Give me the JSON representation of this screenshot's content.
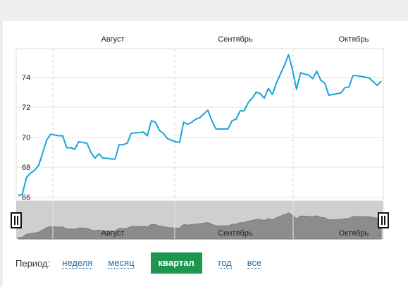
{
  "chart_data": {
    "type": "line",
    "title": "",
    "xlabel": "",
    "ylabel": "",
    "x_tick_labels": [
      "Август",
      "Сентябрь",
      "Октябрь"
    ],
    "y_ticks": [
      66,
      68,
      70,
      72,
      74
    ],
    "ylim": [
      65.8,
      75.9
    ],
    "grid": true,
    "series": [
      {
        "color": "#1aa4d8",
        "values": [
          66.1,
          66.2,
          67.3,
          67.6,
          67.8,
          68.1,
          68.9,
          69.8,
          70.2,
          70.15,
          70.1,
          70.1,
          69.3,
          69.3,
          69.2,
          69.7,
          69.65,
          69.6,
          69.0,
          68.6,
          68.9,
          68.6,
          68.6,
          68.55,
          68.55,
          69.5,
          69.5,
          69.6,
          70.25,
          70.3,
          70.3,
          70.35,
          70.1,
          71.1,
          71.0,
          70.45,
          70.25,
          69.9,
          69.8,
          69.7,
          69.65,
          71.0,
          70.85,
          71.0,
          71.2,
          71.3,
          71.55,
          71.8,
          71.1,
          70.55,
          70.55,
          70.55,
          70.55,
          71.1,
          71.2,
          71.75,
          71.75,
          72.3,
          72.6,
          73.0,
          72.9,
          72.6,
          73.25,
          72.85,
          73.6,
          74.2,
          74.8,
          75.5,
          74.5,
          73.2,
          74.3,
          74.2,
          74.15,
          73.9,
          74.4,
          73.8,
          73.6,
          72.8,
          72.85,
          72.9,
          72.95,
          73.3,
          73.35,
          74.1,
          74.1,
          74.05,
          74.0,
          73.95,
          73.7,
          73.45,
          73.75
        ]
      }
    ]
  },
  "navigator": {
    "labels": [
      "Август",
      "Сентябрь",
      "Октябрь"
    ],
    "left_handle_icon": "range-handle-icon",
    "right_handle_icon": "range-handle-icon"
  },
  "period": {
    "label": "Период:",
    "options": [
      "неделя",
      "месяц",
      "квартал",
      "год",
      "все"
    ],
    "active": "квартал"
  }
}
